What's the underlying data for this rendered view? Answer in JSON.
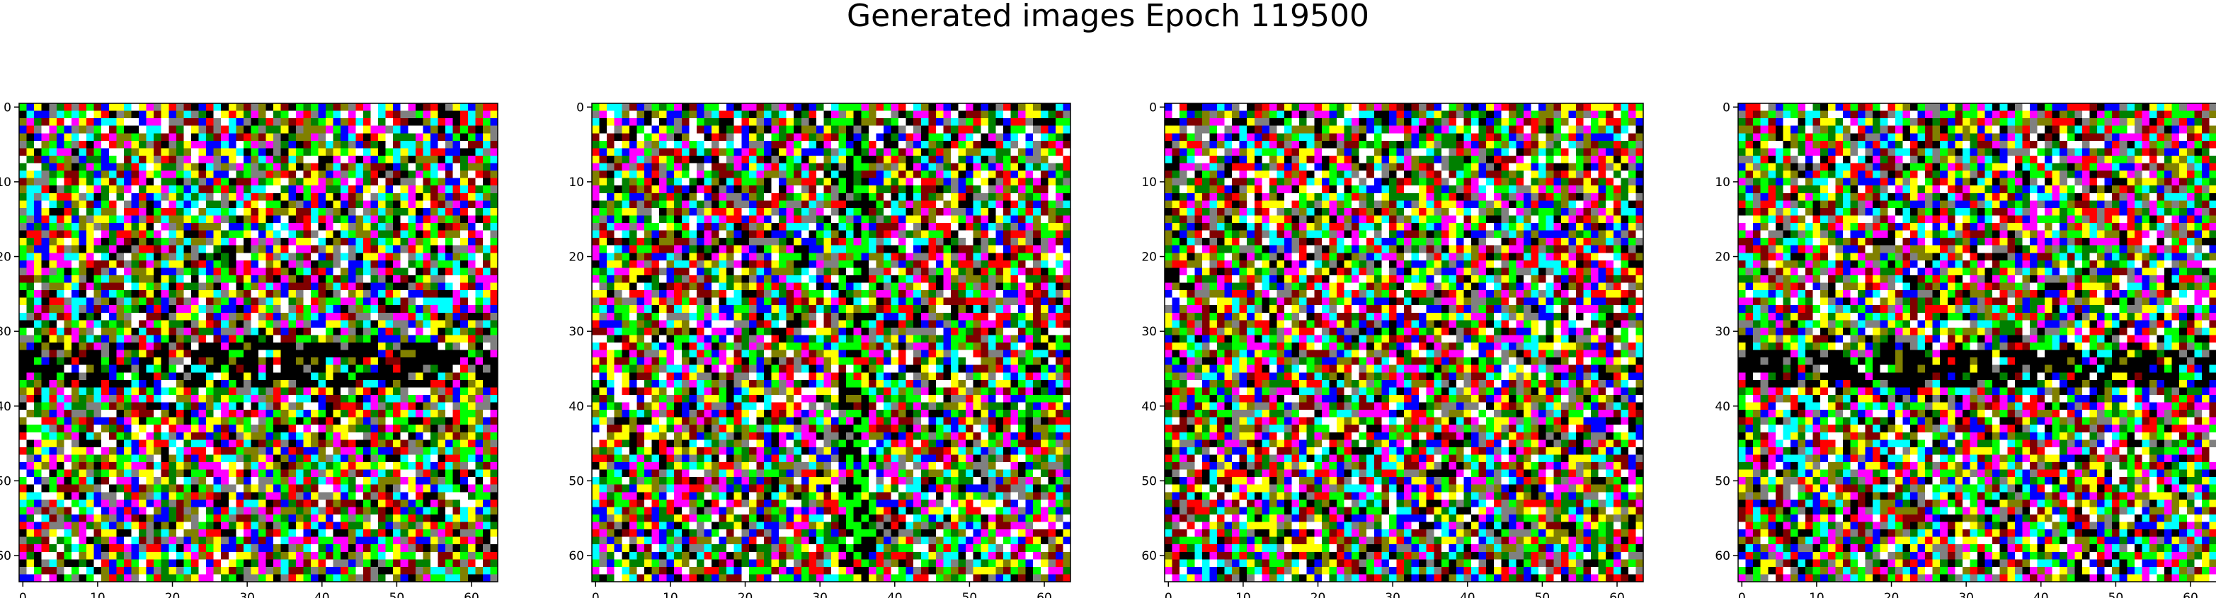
{
  "figure": {
    "title": "Generated images Epoch 119500"
  },
  "chart_data": [
    {
      "type": "heatmap",
      "description_grid": "64x64 RGB noise image",
      "grid_size": 64,
      "seed": 11,
      "features": [
        {
          "kind": "h-band",
          "from": 32,
          "to": 37,
          "density": 0.55
        }
      ],
      "x_ticks": [
        0,
        10,
        20,
        30,
        40,
        50,
        60
      ],
      "y_ticks": [
        0,
        10,
        20,
        30,
        40,
        50,
        60
      ],
      "xlim": [
        -0.5,
        63.5
      ],
      "ylim": [
        63.5,
        -0.5
      ]
    },
    {
      "type": "heatmap",
      "grid_size": 64,
      "seed": 23,
      "features": [
        {
          "kind": "v-band",
          "from": 33,
          "to": 36,
          "density": 0.6
        }
      ],
      "x_ticks": [
        0,
        10,
        20,
        30,
        40,
        50,
        60
      ],
      "y_ticks": [
        0,
        10,
        20,
        30,
        40,
        50,
        60
      ],
      "xlim": [
        -0.5,
        63.5
      ],
      "ylim": [
        63.5,
        -0.5
      ]
    },
    {
      "type": "heatmap",
      "grid_size": 64,
      "seed": 37,
      "features": [],
      "x_ticks": [
        0,
        10,
        20,
        30,
        40,
        50,
        60
      ],
      "y_ticks": [
        0,
        10,
        20,
        30,
        40,
        50,
        60
      ],
      "xlim": [
        -0.5,
        63.5
      ],
      "ylim": [
        63.5,
        -0.5
      ]
    },
    {
      "type": "heatmap",
      "grid_size": 64,
      "seed": 53,
      "features": [
        {
          "kind": "h-band",
          "from": 33,
          "to": 37,
          "density": 0.55
        }
      ],
      "x_ticks": [
        0,
        10,
        20,
        30,
        40,
        50,
        60
      ],
      "y_ticks": [
        0,
        10,
        20,
        30,
        40,
        50,
        60
      ],
      "xlim": [
        -0.5,
        63.5
      ],
      "ylim": [
        63.5,
        -0.5
      ]
    }
  ],
  "palette": [
    "#000000",
    "#ff0000",
    "#00ff00",
    "#0000ff",
    "#ffff00",
    "#ff00ff",
    "#00ffff",
    "#ffffff",
    "#808080",
    "#800000",
    "#008000",
    "#808000"
  ]
}
